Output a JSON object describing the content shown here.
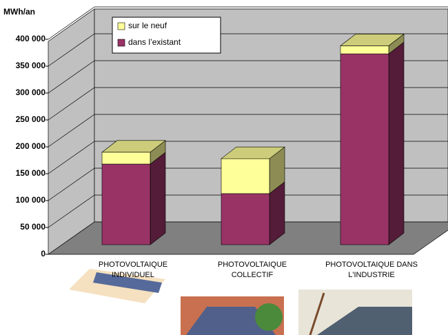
{
  "chart_data": {
    "type": "bar3d_stacked",
    "y_label": "MWh/an",
    "categories": [
      "PHOTOVOLTAIQUE INDIVIDUEL",
      "PHOTOVOLTAIQUE COLLECTIF",
      "PHOTOVOLTAIQUE DANS L'INDUSTRIE"
    ],
    "series": [
      {
        "name": "dans l’existant",
        "color": "#993366",
        "values": [
          150000,
          95000,
          355000
        ]
      },
      {
        "name": "sur le neuf",
        "color": "#ffff99",
        "values": [
          22000,
          65000,
          15000
        ]
      }
    ],
    "ylim": [
      0,
      400000
    ],
    "yticks": [
      {
        "value": 0,
        "label": "0"
      },
      {
        "value": 50000,
        "label": "50 000"
      },
      {
        "value": 100000,
        "label": "100 000"
      },
      {
        "value": 150000,
        "label": "150 000"
      },
      {
        "value": 200000,
        "label": "200 000"
      },
      {
        "value": 250000,
        "label": "250 000"
      },
      {
        "value": 300000,
        "label": "300 000"
      },
      {
        "value": 350000,
        "label": "350 000"
      },
      {
        "value": 400000,
        "label": "400 000"
      }
    ],
    "grid": true
  }
}
